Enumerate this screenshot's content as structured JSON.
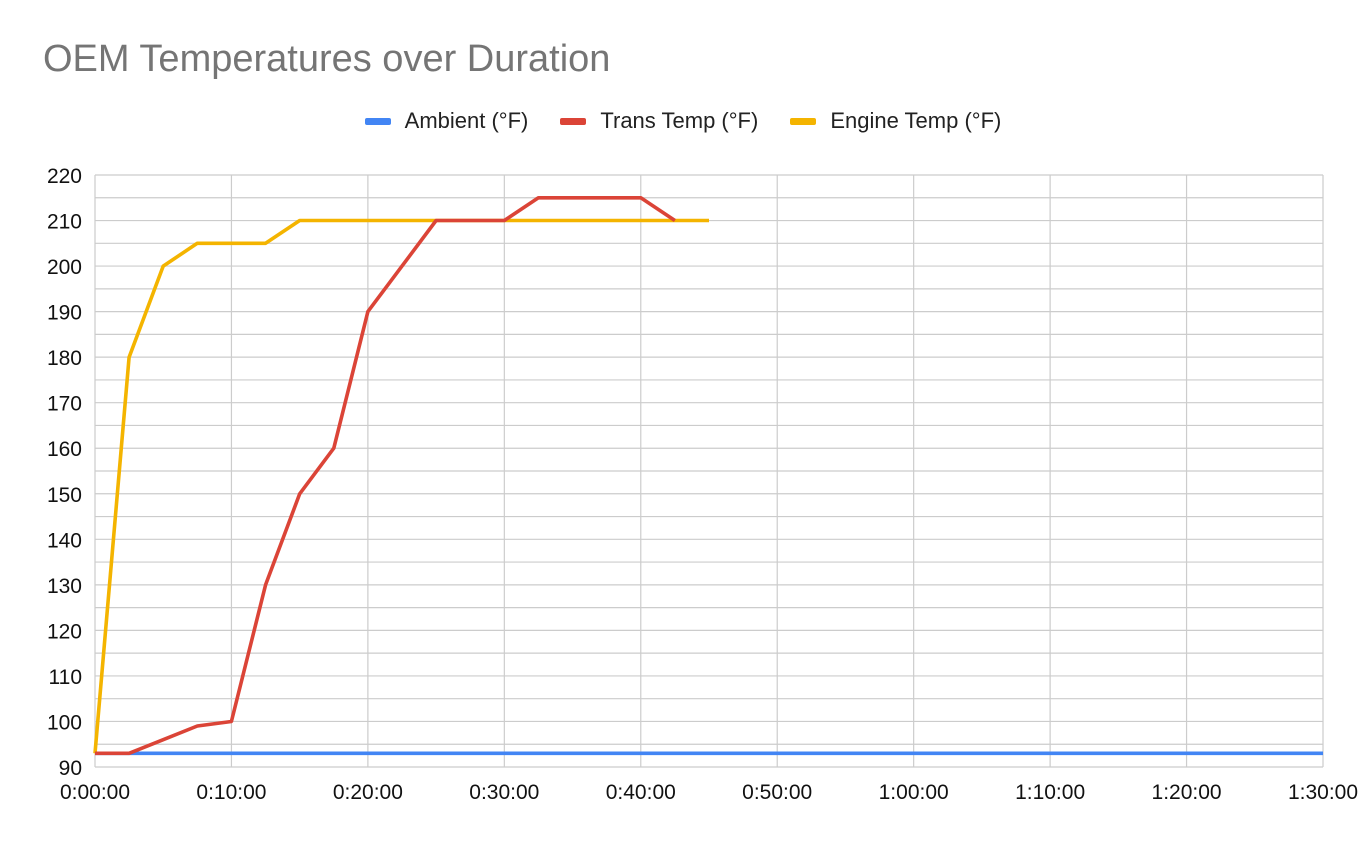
{
  "chart_data": {
    "type": "line",
    "title": "OEM Temperatures over Duration",
    "xlabel": "",
    "ylabel": "",
    "x_tick_labels": [
      "0:00:00",
      "0:10:00",
      "0:20:00",
      "0:30:00",
      "0:40:00",
      "0:50:00",
      "1:00:00",
      "1:10:00",
      "1:20:00",
      "1:30:00"
    ],
    "y_tick_labels": [
      "90",
      "100",
      "110",
      "120",
      "130",
      "140",
      "150",
      "160",
      "170",
      "180",
      "190",
      "200",
      "210",
      "220"
    ],
    "xlim_minutes": [
      0,
      90
    ],
    "ylim": [
      90,
      220
    ],
    "grid": true,
    "legend_position": "top",
    "series": [
      {
        "name": "Ambient (°F)",
        "color": "#4285f4",
        "x_minutes": [
          0,
          90
        ],
        "values": [
          93,
          93
        ]
      },
      {
        "name": "Trans Temp (°F)",
        "color": "#db4437",
        "x_minutes": [
          0,
          2.5,
          5,
          7.5,
          10,
          12.5,
          15,
          17.5,
          20,
          22.5,
          25,
          27.5,
          30,
          32.5,
          35,
          37.5,
          40,
          42.5
        ],
        "values": [
          93,
          93,
          96,
          99,
          100,
          130,
          150,
          160,
          190,
          200,
          210,
          210,
          210,
          215,
          215,
          215,
          215,
          210
        ]
      },
      {
        "name": "Engine Temp (°F)",
        "color": "#f4b400",
        "x_minutes": [
          0,
          2.5,
          5,
          7.5,
          10,
          12.5,
          15,
          17.5,
          20,
          22.5,
          25,
          27.5,
          30,
          32.5,
          35,
          37.5,
          40,
          42.5,
          45
        ],
        "values": [
          93,
          180,
          200,
          205,
          205,
          205,
          210,
          210,
          210,
          210,
          210,
          210,
          210,
          210,
          210,
          210,
          210,
          210,
          210
        ]
      }
    ]
  }
}
